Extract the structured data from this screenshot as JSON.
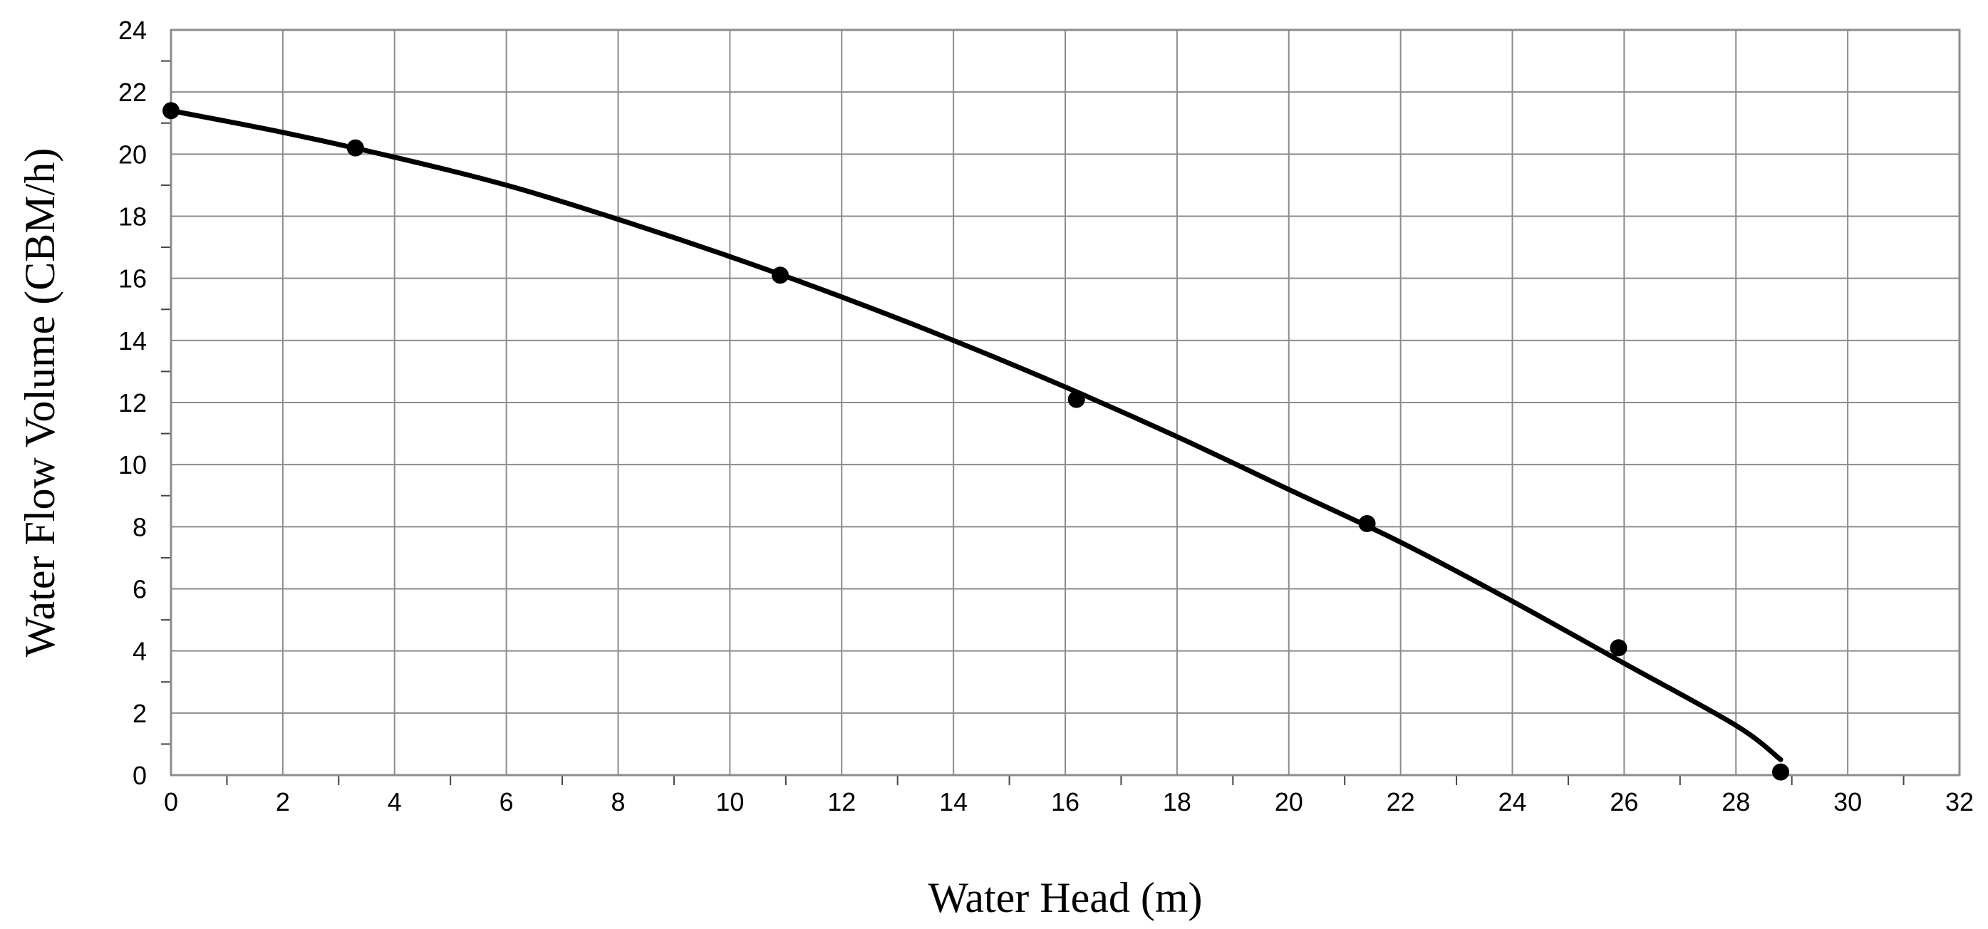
{
  "chart_data": {
    "type": "scatter",
    "title": "",
    "xlabel": "Water Head (m)",
    "ylabel": "Water Flow Volume (CBM/h)",
    "xlim": [
      0,
      32
    ],
    "ylim": [
      0,
      24
    ],
    "x_ticks": [
      "0",
      "2",
      "4",
      "6",
      "8",
      "10",
      "12",
      "14",
      "16",
      "18",
      "20",
      "22",
      "24",
      "26",
      "28",
      "30",
      "32"
    ],
    "y_ticks": [
      "0",
      "2",
      "4",
      "6",
      "8",
      "10",
      "12",
      "14",
      "16",
      "18",
      "20",
      "22",
      "24"
    ],
    "grid": true,
    "legend": "none",
    "series": [
      {
        "type": "scatter",
        "x": [
          0,
          3.3,
          10.9,
          16.2,
          21.4,
          25.9,
          28.8
        ],
        "y": [
          21.4,
          20.2,
          16.1,
          12.1,
          8.1,
          4.1,
          0.1
        ],
        "color": "#000000"
      },
      {
        "type": "line",
        "x": [
          0,
          2,
          4,
          6,
          8,
          10,
          12,
          14,
          16,
          18,
          20,
          22,
          24,
          26,
          28,
          28.8
        ],
        "y": [
          21.4,
          20.7,
          19.9,
          19.0,
          17.9,
          16.7,
          15.4,
          14.0,
          12.5,
          10.9,
          9.2,
          7.5,
          5.6,
          3.6,
          1.6,
          0.5
        ],
        "color": "#000000"
      }
    ]
  }
}
